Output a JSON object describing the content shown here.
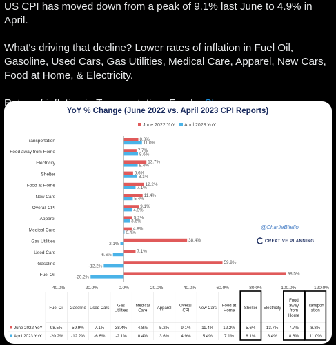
{
  "tweet": {
    "line1": "US CPI has moved down from a peak of 9.1% last June to 4.9% in April.",
    "line2": "What's driving that decline? Lower rates of inflation in Fuel Oil, Gasoline, Used Cars, Gas Utilities, Medical Care, Apparel, New Cars, Food at Home, & Electricity.",
    "line3_prefix": "Rates of inflation in Transportation, Food...",
    "show_more": "Show more"
  },
  "watermark": {
    "handle": "@CharlieBilello",
    "brand": "CREATIVE PLANNING"
  },
  "colors": {
    "series_june": "#e05a5a",
    "series_april": "#4ab3e8",
    "link": "#1d9bf0"
  },
  "chart_data": {
    "type": "bar",
    "orientation": "horizontal",
    "title": "YoY % Change (June 2022 vs. April 2023 CPI Reports)",
    "legend_position": "top",
    "xlim": [
      -40,
      120
    ],
    "x_ticks": [
      "-40.0%",
      "-20.0%",
      "0.0%",
      "20.0%",
      "40.0%",
      "60.0%",
      "80.0%",
      "100.0%",
      "120.0%"
    ],
    "grid": false,
    "categories": [
      "Transportation",
      "Food away from Home",
      "Electricity",
      "Shelter",
      "Food at Home",
      "New Cars",
      "Overall CPI",
      "Apparel",
      "Medical Care",
      "Gas Utilities",
      "Used Cars",
      "Gasoline",
      "Fuel Oil"
    ],
    "series": [
      {
        "name": "June 2022 YoY",
        "values": [
          8.8,
          7.7,
          13.7,
          5.6,
          12.2,
          11.4,
          9.1,
          5.2,
          4.8,
          38.4,
          7.1,
          59.9,
          98.5
        ],
        "labels": [
          "8.8%",
          "7.7%",
          "13.7%",
          "5.6%",
          "12.2%",
          "11.4%",
          "9.1%",
          "5.2%",
          "4.8%",
          "38.4%",
          "7.1%",
          "59.9%",
          "98.5%"
        ]
      },
      {
        "name": "April 2023 YoY",
        "values": [
          11.0,
          8.6,
          8.4,
          8.1,
          7.1,
          5.4,
          4.9,
          3.6,
          0.4,
          -2.1,
          -6.6,
          -12.2,
          -20.2
        ],
        "labels": [
          "11.0%",
          "8.6%",
          "8.4%",
          "8.1%",
          "7.1%",
          "5.4%",
          "4.9%",
          "3.6%",
          "0.4%",
          "-2.1%",
          "-6.6%",
          "-12.2%",
          "-20.2%"
        ]
      }
    ],
    "table": {
      "columns": [
        "Fuel Oil",
        "Gasoline",
        "Used Cars",
        "Gas Utilities",
        "Medical Care",
        "Apparel",
        "Overall CPI",
        "New Cars",
        "Food at Home",
        "Shelter",
        "Electricity",
        "Food away from Home",
        "Transportation"
      ],
      "column_header_display": [
        [
          "Fuel Oil"
        ],
        [
          "Gasoline"
        ],
        [
          "Used Cars"
        ],
        [
          "Gas",
          "Utilities"
        ],
        [
          "Medical",
          "Care"
        ],
        [
          "Apparel"
        ],
        [
          "Overall",
          "CPI"
        ],
        [
          "New Cars"
        ],
        [
          "Food at",
          "Home"
        ],
        [
          "Shelter"
        ],
        [
          "Electricity"
        ],
        [
          "Food",
          "away",
          "from",
          "Home"
        ],
        [
          "Transport",
          "ation"
        ]
      ],
      "rows": [
        {
          "label": "June 2022 YoY",
          "values": [
            "98.5%",
            "59.9%",
            "7.1%",
            "38.4%",
            "4.8%",
            "5.2%",
            "9.1%",
            "11.4%",
            "12.2%",
            "5.6%",
            "13.7%",
            "7.7%",
            "8.8%"
          ]
        },
        {
          "label": "April 2023 YoY",
          "values": [
            "-20.2%",
            "-12.2%",
            "-6.6%",
            "-2.1%",
            "0.4%",
            "3.6%",
            "4.9%",
            "5.4%",
            "7.1%",
            "8.1%",
            "8.4%",
            "8.6%",
            "11.0%"
          ]
        }
      ],
      "highlighted_columns": [
        "Shelter",
        "Food away from Home",
        "Transportation"
      ]
    }
  }
}
